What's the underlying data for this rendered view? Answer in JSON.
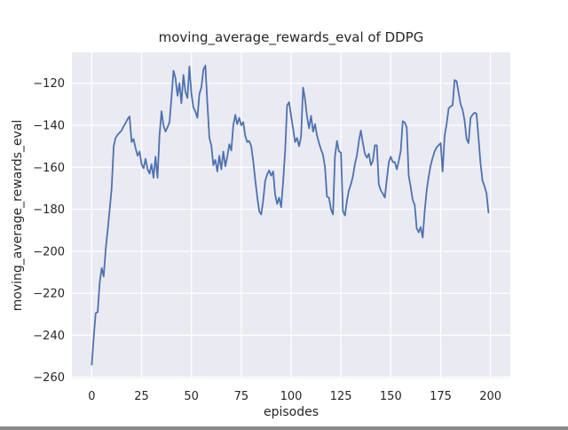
{
  "window": {
    "title": "moving_average_rewards_eval of DDPG"
  },
  "chart_data": {
    "type": "line",
    "title": "moving_average_rewards_eval of DDPG",
    "xlabel": "episodes",
    "ylabel": "moving_average_rewards_eval",
    "grid": true,
    "legend": "none",
    "xlim": [
      -9.95,
      209.95
    ],
    "ylim": [
      -260.6,
      -105.3
    ],
    "xticks": [
      0,
      25,
      50,
      75,
      100,
      125,
      150,
      175,
      200
    ],
    "yticks": [
      -260,
      -240,
      -220,
      -200,
      -180,
      -160,
      -140,
      -120
    ],
    "series": [
      {
        "name": "moving_average_rewards_eval",
        "x_start": 0,
        "x_step": 1,
        "values": [
          -254,
          -241,
          -229.5,
          -229,
          -215,
          -208,
          -212,
          -199,
          -190,
          -180,
          -170,
          -150,
          -146,
          -144.5,
          -143.5,
          -142.5,
          -140.5,
          -139,
          -137,
          -135.8,
          -148,
          -146.5,
          -151,
          -154.5,
          -152.5,
          -158.5,
          -160.5,
          -156,
          -161,
          -163,
          -158.5,
          -165,
          -155,
          -165,
          -145,
          -133.3,
          -140,
          -143,
          -141,
          -138.5,
          -127,
          -114,
          -117.5,
          -126,
          -120,
          -129.5,
          -116,
          -124,
          -127,
          -112,
          -125,
          -131.5,
          -133.5,
          -136.5,
          -125,
          -122,
          -113.5,
          -111.5,
          -129,
          -146,
          -149.5,
          -159,
          -156.5,
          -162,
          -154.5,
          -161,
          -152.5,
          -159.5,
          -155,
          -149,
          -152,
          -140,
          -135,
          -139.5,
          -136.5,
          -140,
          -138.5,
          -145,
          -148,
          -147.5,
          -150,
          -157,
          -166,
          -174,
          -181,
          -182.5,
          -176,
          -166.5,
          -163.5,
          -161.5,
          -164,
          -162,
          -173,
          -177.5,
          -174.5,
          -179,
          -167,
          -152,
          -130.5,
          -129,
          -135.5,
          -141.5,
          -148,
          -146,
          -150,
          -145.5,
          -122,
          -127.5,
          -136,
          -141.5,
          -135.5,
          -143,
          -139.5,
          -145,
          -148.5,
          -151.5,
          -154,
          -160,
          -174,
          -174.5,
          -180,
          -182.5,
          -155,
          -147.5,
          -152.5,
          -153,
          -181,
          -183,
          -176,
          -171,
          -168,
          -164.5,
          -158.5,
          -154.5,
          -147.5,
          -142.5,
          -148.5,
          -153.5,
          -155.5,
          -153.5,
          -159,
          -157,
          -149.5,
          -149.5,
          -168,
          -171,
          -172.5,
          -174.5,
          -166,
          -157.5,
          -155,
          -157.5,
          -157.5,
          -161,
          -157,
          -152,
          -138,
          -138.7,
          -141,
          -164,
          -169.5,
          -175.5,
          -178,
          -189,
          -191,
          -188.5,
          -193.5,
          -181,
          -171,
          -164.5,
          -159,
          -155.5,
          -152.5,
          -150.5,
          -149.5,
          -148.5,
          -162,
          -145,
          -139.5,
          -132,
          -131,
          -130.5,
          -118.5,
          -119,
          -124.5,
          -130,
          -132.5,
          -137.5,
          -146.5,
          -148.5,
          -136.5,
          -135,
          -134,
          -134.5,
          -146,
          -158,
          -166.5,
          -169,
          -172.5,
          -181.5
        ]
      }
    ],
    "style": {
      "fig_bg": "#ffffff",
      "plot_bg": "#eaeaf2",
      "grid_color": "#ffffff",
      "line_color": "#4c72b0",
      "text_color": "#262626"
    }
  }
}
